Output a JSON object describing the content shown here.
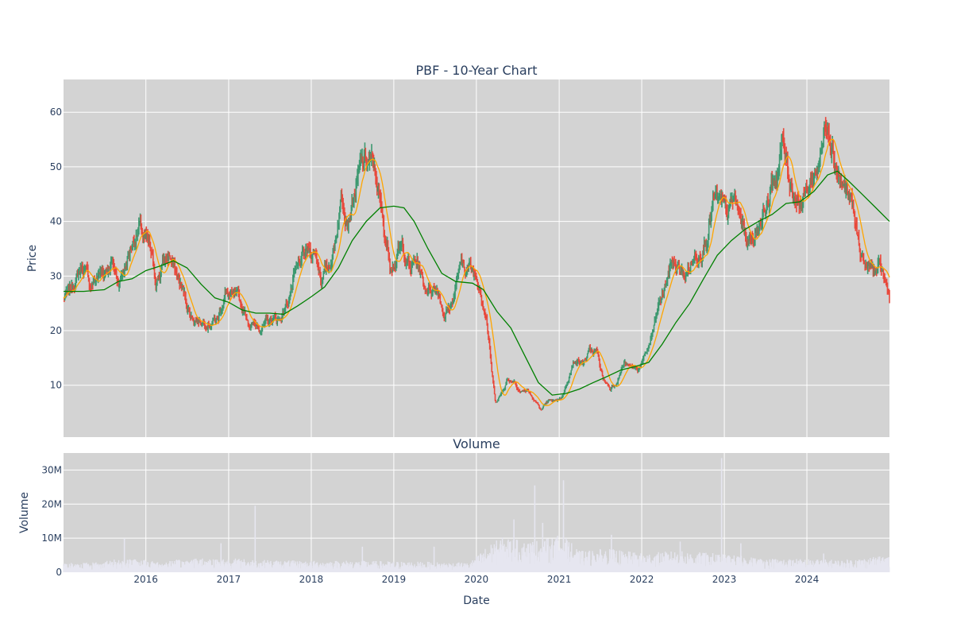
{
  "chart_data": [
    {
      "type": "candlestick",
      "title": "PBF - 10-Year Chart",
      "ylabel": "Price",
      "ylim": [
        0.5,
        66
      ],
      "yticks": [
        10,
        20,
        30,
        40,
        50,
        60
      ],
      "x_range": [
        "2015-01-02",
        "2024-12-31"
      ],
      "grid": true,
      "colors": {
        "increasing": "#3d9970",
        "decreasing": "#e8483b",
        "ma_short": "#ffa500",
        "ma_long": "#008000",
        "plot_bg": "#d3d3d3",
        "grid": "#ffffff"
      },
      "close_series": [
        [
          "2015-01-02",
          26
        ],
        [
          "2015-02-01",
          27
        ],
        [
          "2015-03-01",
          30
        ],
        [
          "2015-04-01",
          32
        ],
        [
          "2015-04-15",
          30
        ],
        [
          "2015-05-01",
          28
        ],
        [
          "2015-06-01",
          30
        ],
        [
          "2015-07-01",
          31
        ],
        [
          "2015-08-01",
          33
        ],
        [
          "2015-09-01",
          29
        ],
        [
          "2015-10-01",
          32
        ],
        [
          "2015-11-01",
          36
        ],
        [
          "2015-12-01",
          39
        ],
        [
          "2016-01-15",
          35
        ],
        [
          "2016-02-15",
          29
        ],
        [
          "2016-03-15",
          32
        ],
        [
          "2016-04-15",
          34
        ],
        [
          "2016-05-15",
          30
        ],
        [
          "2016-06-15",
          27
        ],
        [
          "2016-07-15",
          23
        ],
        [
          "2016-08-15",
          22
        ],
        [
          "2016-09-15",
          22
        ],
        [
          "2016-10-15",
          22
        ],
        [
          "2016-11-15",
          22
        ],
        [
          "2016-12-15",
          27
        ],
        [
          "2017-01-15",
          26
        ],
        [
          "2017-02-15",
          25
        ],
        [
          "2017-03-15",
          23
        ],
        [
          "2017-04-15",
          21
        ],
        [
          "2017-05-15",
          21
        ],
        [
          "2017-06-15",
          21
        ],
        [
          "2017-07-15",
          22
        ],
        [
          "2017-08-15",
          22
        ],
        [
          "2017-09-15",
          25
        ],
        [
          "2017-10-15",
          29
        ],
        [
          "2017-11-15",
          32
        ],
        [
          "2017-12-15",
          34
        ],
        [
          "2018-01-15",
          35
        ],
        [
          "2018-02-15",
          30
        ],
        [
          "2018-03-15",
          31
        ],
        [
          "2018-04-15",
          36
        ],
        [
          "2018-05-15",
          45
        ],
        [
          "2018-06-15",
          42
        ],
        [
          "2018-07-15",
          46
        ],
        [
          "2018-08-15",
          50
        ],
        [
          "2018-09-15",
          51
        ],
        [
          "2018-10-15",
          48
        ],
        [
          "2018-11-15",
          39
        ],
        [
          "2018-12-15",
          33
        ],
        [
          "2019-01-15",
          34
        ],
        [
          "2019-02-15",
          35
        ],
        [
          "2019-03-15",
          31
        ],
        [
          "2019-04-15",
          33
        ],
        [
          "2019-05-15",
          28
        ],
        [
          "2019-06-15",
          28
        ],
        [
          "2019-07-15",
          28
        ],
        [
          "2019-08-15",
          23
        ],
        [
          "2019-09-15",
          25
        ],
        [
          "2019-10-15",
          31
        ],
        [
          "2019-11-15",
          32
        ],
        [
          "2019-12-15",
          31
        ],
        [
          "2020-01-15",
          29
        ],
        [
          "2020-02-15",
          23
        ],
        [
          "2020-03-10",
          12
        ],
        [
          "2020-03-25",
          7
        ],
        [
          "2020-04-15",
          8
        ],
        [
          "2020-05-15",
          11
        ],
        [
          "2020-06-15",
          11
        ],
        [
          "2020-07-15",
          9
        ],
        [
          "2020-08-15",
          9
        ],
        [
          "2020-09-15",
          7
        ],
        [
          "2020-10-15",
          5.5
        ],
        [
          "2020-11-15",
          7
        ],
        [
          "2020-12-15",
          7
        ],
        [
          "2021-01-15",
          8
        ],
        [
          "2021-02-15",
          12
        ],
        [
          "2021-03-15",
          15
        ],
        [
          "2021-04-15",
          14
        ],
        [
          "2021-05-15",
          16
        ],
        [
          "2021-06-15",
          16
        ],
        [
          "2021-07-15",
          11
        ],
        [
          "2021-08-15",
          9.5
        ],
        [
          "2021-09-15",
          11
        ],
        [
          "2021-10-15",
          14
        ],
        [
          "2021-11-15",
          13
        ],
        [
          "2021-12-15",
          13
        ],
        [
          "2022-01-15",
          15
        ],
        [
          "2022-02-15",
          19
        ],
        [
          "2022-03-15",
          24
        ],
        [
          "2022-04-15",
          28
        ],
        [
          "2022-05-15",
          33
        ],
        [
          "2022-06-15",
          31
        ],
        [
          "2022-07-15",
          30
        ],
        [
          "2022-08-15",
          33
        ],
        [
          "2022-09-15",
          35
        ],
        [
          "2022-10-15",
          38
        ],
        [
          "2022-11-15",
          44
        ],
        [
          "2022-12-15",
          42
        ],
        [
          "2023-01-15",
          41
        ],
        [
          "2023-02-15",
          44
        ],
        [
          "2023-03-15",
          40
        ],
        [
          "2023-04-15",
          36
        ],
        [
          "2023-05-15",
          38
        ],
        [
          "2023-06-15",
          41
        ],
        [
          "2023-07-15",
          44
        ],
        [
          "2023-08-15",
          48
        ],
        [
          "2023-09-15",
          54
        ],
        [
          "2023-10-15",
          48
        ],
        [
          "2023-11-15",
          45
        ],
        [
          "2023-12-15",
          44
        ],
        [
          "2024-01-15",
          47
        ],
        [
          "2024-02-15",
          50
        ],
        [
          "2024-03-15",
          55
        ],
        [
          "2024-04-01",
          60
        ],
        [
          "2024-04-20",
          56
        ],
        [
          "2024-05-15",
          50
        ],
        [
          "2024-06-15",
          46
        ],
        [
          "2024-07-15",
          43
        ],
        [
          "2024-08-15",
          36
        ],
        [
          "2024-09-15",
          32
        ],
        [
          "2024-10-15",
          31
        ],
        [
          "2024-11-15",
          31
        ],
        [
          "2024-12-01",
          30
        ],
        [
          "2024-12-31",
          26
        ]
      ],
      "ma_long_series": [
        [
          "2015-01-02",
          27.2
        ],
        [
          "2015-04-01",
          27.2
        ],
        [
          "2015-07-01",
          27.5
        ],
        [
          "2015-09-01",
          29
        ],
        [
          "2015-11-01",
          29.5
        ],
        [
          "2016-01-01",
          31
        ],
        [
          "2016-03-01",
          31.8
        ],
        [
          "2016-05-01",
          32.8
        ],
        [
          "2016-07-01",
          31.5
        ],
        [
          "2016-09-01",
          28.5
        ],
        [
          "2016-11-01",
          26
        ],
        [
          "2017-01-01",
          25.2
        ],
        [
          "2017-03-01",
          23.8
        ],
        [
          "2017-05-01",
          23.2
        ],
        [
          "2017-07-01",
          23.2
        ],
        [
          "2017-09-01",
          23.0
        ],
        [
          "2017-11-01",
          24.5
        ],
        [
          "2018-01-01",
          26.2
        ],
        [
          "2018-03-01",
          28
        ],
        [
          "2018-05-01",
          31.5
        ],
        [
          "2018-07-01",
          36.5
        ],
        [
          "2018-09-01",
          40
        ],
        [
          "2018-11-01",
          42.5
        ],
        [
          "2019-01-01",
          42.8
        ],
        [
          "2019-02-15",
          42.5
        ],
        [
          "2019-04-01",
          40
        ],
        [
          "2019-06-01",
          35
        ],
        [
          "2019-08-01",
          30.5
        ],
        [
          "2019-10-01",
          29
        ],
        [
          "2019-12-15",
          28.7
        ],
        [
          "2020-02-01",
          27.5
        ],
        [
          "2020-04-01",
          23.5
        ],
        [
          "2020-06-01",
          20.5
        ],
        [
          "2020-08-01",
          15.5
        ],
        [
          "2020-10-01",
          10.5
        ],
        [
          "2020-12-01",
          8.2
        ],
        [
          "2021-02-01",
          8.5
        ],
        [
          "2021-04-01",
          9.3
        ],
        [
          "2021-06-01",
          10.5
        ],
        [
          "2021-08-01",
          11.6
        ],
        [
          "2021-10-01",
          12.8
        ],
        [
          "2021-12-01",
          13.4
        ],
        [
          "2022-02-01",
          14.2
        ],
        [
          "2022-04-01",
          17.5
        ],
        [
          "2022-06-01",
          21.5
        ],
        [
          "2022-08-01",
          25
        ],
        [
          "2022-10-01",
          29.5
        ],
        [
          "2022-12-01",
          33.8
        ],
        [
          "2023-02-01",
          36.5
        ],
        [
          "2023-04-01",
          38.5
        ],
        [
          "2023-06-01",
          40
        ],
        [
          "2023-08-01",
          41.3
        ],
        [
          "2023-10-01",
          43.3
        ],
        [
          "2023-12-01",
          43.6
        ],
        [
          "2024-02-01",
          45.5
        ],
        [
          "2024-04-01",
          48.5
        ],
        [
          "2024-05-15",
          49.2
        ],
        [
          "2024-07-01",
          47.5
        ],
        [
          "2024-09-01",
          45
        ],
        [
          "2024-11-01",
          42.5
        ],
        [
          "2024-12-31",
          40
        ]
      ]
    },
    {
      "type": "bar",
      "title": "Volume",
      "xlabel": "Date",
      "ylabel": "Volume",
      "ylim": [
        0,
        35000000
      ],
      "yticks": [
        0,
        10000000,
        20000000,
        30000000
      ],
      "ytick_labels": [
        "0",
        "10M",
        "20M",
        "30M"
      ],
      "xtick_labels": [
        "2016",
        "2017",
        "2018",
        "2019",
        "2020",
        "2021",
        "2022",
        "2023",
        "2024"
      ],
      "color": "#e6e6f0",
      "volume_series": [
        [
          "2015-01-02",
          2000000
        ],
        [
          "2015-06-01",
          2200000
        ],
        [
          "2015-10-01",
          3000000
        ],
        [
          "2016-03-01",
          2300000
        ],
        [
          "2016-08-01",
          3000000
        ],
        [
          "2017-01-01",
          3000000
        ],
        [
          "2017-06-01",
          2600000
        ],
        [
          "2018-01-01",
          2400000
        ],
        [
          "2018-06-01",
          2500000
        ],
        [
          "2019-01-01",
          2300000
        ],
        [
          "2019-06-01",
          2200000
        ],
        [
          "2019-12-01",
          2000000
        ],
        [
          "2020-03-01",
          6000000
        ],
        [
          "2020-05-01",
          7500000
        ],
        [
          "2020-08-01",
          6500000
        ],
        [
          "2020-11-01",
          7000000
        ],
        [
          "2021-01-15",
          8000000
        ],
        [
          "2021-04-01",
          4500000
        ],
        [
          "2021-08-01",
          5000000
        ],
        [
          "2022-01-01",
          4000000
        ],
        [
          "2022-06-01",
          4500000
        ],
        [
          "2022-12-01",
          4000000
        ],
        [
          "2023-06-01",
          3000000
        ],
        [
          "2024-01-01",
          2800000
        ],
        [
          "2024-06-01",
          2600000
        ],
        [
          "2024-12-31",
          3500000
        ]
      ],
      "volume_spikes": [
        [
          "2015-09-28",
          10000000
        ],
        [
          "2016-11-28",
          8500000
        ],
        [
          "2017-04-28",
          19500000
        ],
        [
          "2018-08-15",
          7500000
        ],
        [
          "2019-06-28",
          7500000
        ],
        [
          "2020-06-15",
          15500000
        ],
        [
          "2020-09-15",
          25500000
        ],
        [
          "2020-10-20",
          14500000
        ],
        [
          "2021-01-20",
          27000000
        ],
        [
          "2021-08-20",
          11000000
        ],
        [
          "2022-06-20",
          9000000
        ],
        [
          "2022-12-20",
          33500000
        ],
        [
          "2023-03-15",
          8500000
        ],
        [
          "2024-03-15",
          5500000
        ]
      ]
    }
  ]
}
